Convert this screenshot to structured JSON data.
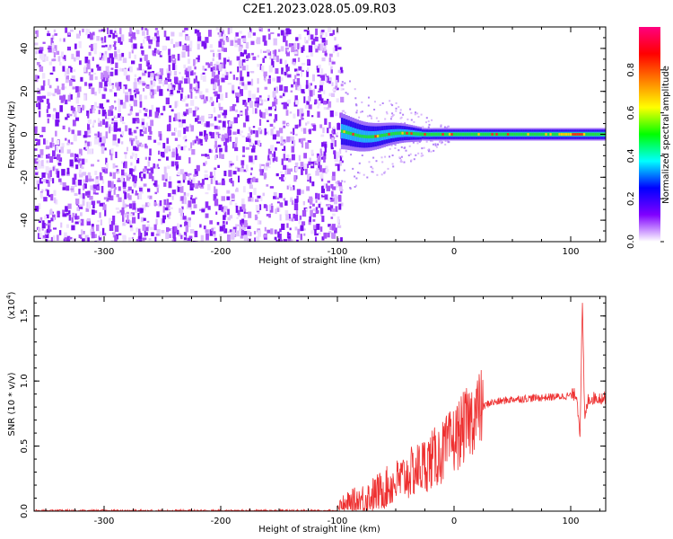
{
  "title": "C2E1.2023.028.05.09.R03",
  "chart_data": [
    {
      "type": "heatmap",
      "xlabel": "Height of straight line (km)",
      "ylabel": "Frequency (Hz)",
      "xlim": [
        -360,
        130
      ],
      "ylim": [
        -50,
        50
      ],
      "xticks": [
        -300,
        -200,
        -100,
        0,
        100
      ],
      "yticks": [
        -40,
        -20,
        0,
        20,
        40
      ],
      "xtick_labels": [
        "-300",
        "-200",
        "-100",
        "0",
        "100"
      ],
      "ytick_labels": [
        "-40",
        "-20",
        "0",
        "20",
        "40"
      ],
      "noise_region_x": [
        -360,
        -97
      ],
      "signal_center_freq_hz": 0,
      "colorbar": {
        "label": "Normalized spectral amplitude",
        "range": [
          0,
          1
        ],
        "ticks": [
          0.0,
          0.2,
          0.4,
          0.6,
          0.8
        ],
        "tick_labels": [
          "0.0",
          "0.2",
          "0.4",
          "0.6",
          "0.8"
        ],
        "colors": [
          "#ffffff",
          "#8000ff",
          "#0000ff",
          "#00ffff",
          "#00ff00",
          "#ffff00",
          "#ff8000",
          "#ff0000",
          "#ff0080"
        ]
      }
    },
    {
      "type": "line",
      "xlabel": "Height of straight line (km)",
      "ylabel": "SNR (10 * v/v)",
      "y_scale_label": "(x10",
      "y_scale_exponent": "4",
      "y_scale_close": ")",
      "xlim": [
        -360,
        130
      ],
      "ylim": [
        0,
        1.65
      ],
      "xticks": [
        -300,
        -200,
        -100,
        0,
        100
      ],
      "yticks": [
        0.0,
        0.5,
        1.0,
        1.5
      ],
      "xtick_labels": [
        "-300",
        "-200",
        "-100",
        "0",
        "100"
      ],
      "ytick_labels": [
        "0.0",
        "0.5",
        "1.0",
        "1.5"
      ],
      "color": "#ee3030",
      "series_profile": {
        "x": [
          -360,
          -100,
          -90,
          -70,
          -50,
          -30,
          -10,
          0,
          10,
          20,
          30,
          50,
          70,
          90,
          100,
          105,
          108,
          110,
          112,
          115,
          120,
          130
        ],
        "y": [
          0.0,
          0.0,
          0.05,
          0.12,
          0.22,
          0.33,
          0.45,
          0.55,
          0.66,
          0.77,
          0.83,
          0.86,
          0.87,
          0.88,
          0.89,
          0.9,
          0.6,
          1.6,
          0.7,
          0.86,
          0.87,
          0.87
        ]
      }
    }
  ]
}
